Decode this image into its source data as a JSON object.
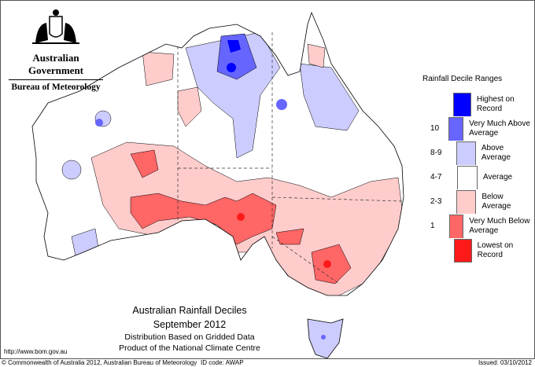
{
  "header": {
    "government": "Australian Government",
    "bureau": "Bureau of Meteorology"
  },
  "legend": {
    "title": "Rainfall Decile Ranges",
    "items": [
      {
        "value": "",
        "label": "Highest on Record",
        "color": "#0000ff"
      },
      {
        "value": "10",
        "label": "Very Much Above Average",
        "color": "#6666ff"
      },
      {
        "value": "8-9",
        "label": "Above Average",
        "color": "#ccccff"
      },
      {
        "value": "4-7",
        "label": "Average",
        "color": "#ffffff"
      },
      {
        "value": "2-3",
        "label": "Below Average",
        "color": "#ffcccc"
      },
      {
        "value": "1",
        "label": "Very Much Below Average",
        "color": "#ff6666"
      },
      {
        "value": "",
        "label": "Lowest on Record",
        "color": "#ff1a1a"
      }
    ]
  },
  "map": {
    "title": "Australian Rainfall Deciles",
    "period": "September 2012",
    "subtitle": "Distribution Based on Gridded Data",
    "product": "Product of the National Climate Centre"
  },
  "footer": {
    "url": "http://www.bom.gov.au",
    "copyright": "© Commonwealth of Australia 2012, Australian Bureau of Meteorology",
    "id_code": "ID code: AWAP",
    "issued": "Issued: 03/10/2012"
  }
}
